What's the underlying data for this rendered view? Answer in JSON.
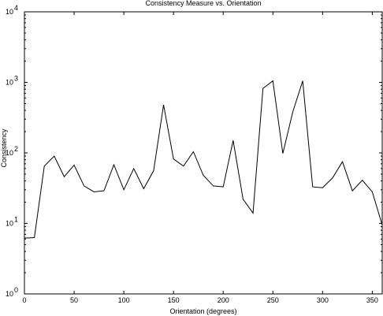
{
  "chart_data": {
    "type": "line",
    "title": "Consistency Measure vs. Orientation",
    "xlabel": "Orientation (degrees)",
    "ylabel": "Consistency",
    "xlim": [
      0,
      360
    ],
    "ylim": [
      1,
      10000
    ],
    "yscale": "log",
    "grid": false,
    "legend": "none",
    "line_color": "#000000",
    "x_ticks": [
      0,
      50,
      100,
      150,
      200,
      250,
      300,
      350
    ],
    "y_ticks": [
      {
        "value": 1,
        "base": "10",
        "exp": "0"
      },
      {
        "value": 10,
        "base": "10",
        "exp": "1"
      },
      {
        "value": 100,
        "base": "10",
        "exp": "2"
      },
      {
        "value": 1000,
        "base": "10",
        "exp": "3"
      },
      {
        "value": 10000,
        "base": "10",
        "exp": "4"
      }
    ],
    "series": [
      {
        "x": [
          0,
          10,
          20,
          30,
          40,
          50,
          60,
          70,
          80,
          90,
          100,
          110,
          120,
          130,
          140,
          150,
          160,
          170,
          180,
          190,
          200,
          210,
          220,
          230,
          240,
          250,
          260,
          270,
          280,
          290,
          300,
          310,
          320,
          330,
          340,
          350,
          360
        ],
        "values": [
          6.2,
          6.3,
          65,
          90,
          46,
          67,
          34,
          28,
          29,
          68,
          30,
          60,
          31,
          56,
          480,
          82,
          65,
          104,
          48,
          34,
          33,
          150,
          22,
          14,
          820,
          1050,
          98,
          380,
          1050,
          33,
          32,
          44,
          75,
          29,
          41,
          28,
          9.5
        ]
      }
    ]
  }
}
